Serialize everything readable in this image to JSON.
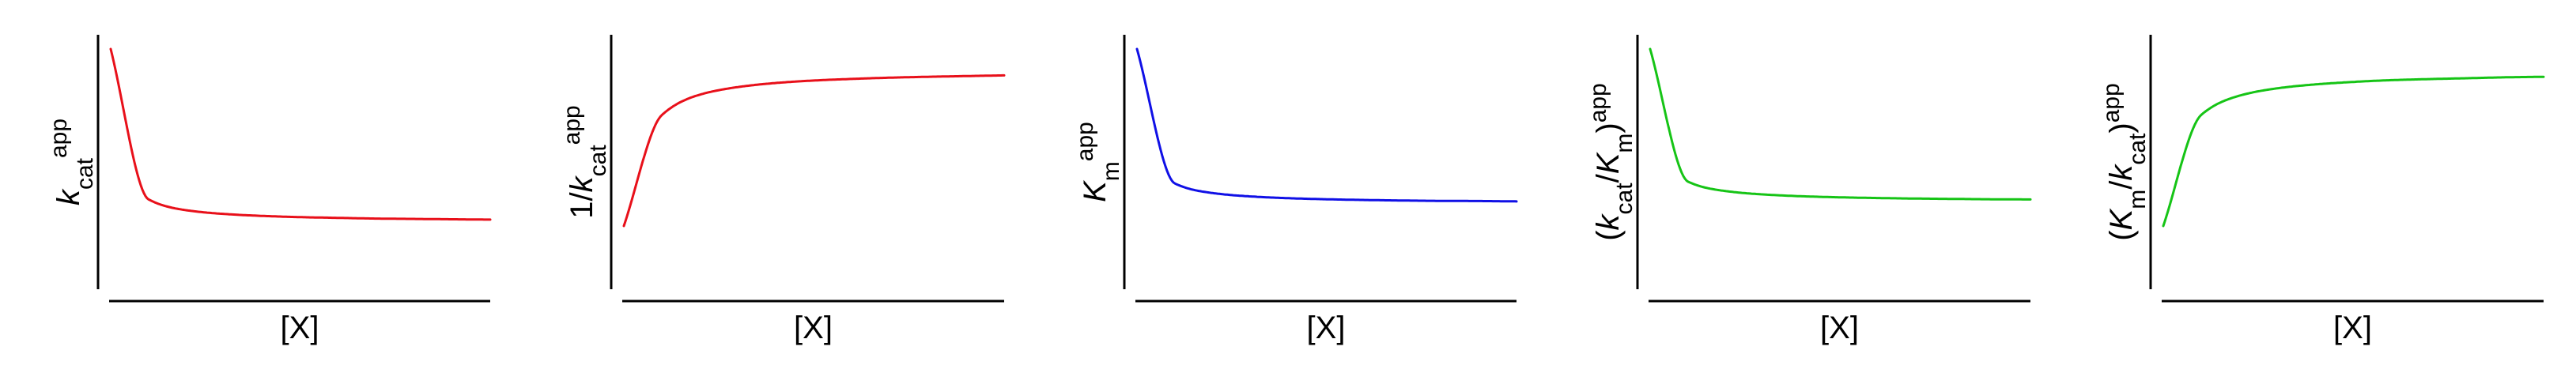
{
  "chart_data": [
    {
      "type": "line",
      "xlabel": "[X]",
      "ylabel": {
        "prefix": "",
        "base": "k",
        "base_sub": "cat",
        "suffix": "",
        "sup": "app"
      },
      "series": [
        {
          "color": "#e8101a",
          "x": [
            0.0,
            0.1,
            0.2,
            0.3,
            0.4,
            0.5,
            0.6,
            0.7,
            0.8,
            0.9,
            1.0
          ],
          "y": [
            1.0,
            0.15,
            0.089,
            0.068,
            0.057,
            0.05,
            0.046,
            0.042,
            0.04,
            0.038,
            0.036
          ]
        }
      ],
      "grid": false
    },
    {
      "type": "line",
      "xlabel": "[X]",
      "ylabel": {
        "prefix": "1/",
        "base": "k",
        "base_sub": "cat",
        "suffix": "",
        "sup": "app"
      },
      "series": [
        {
          "color": "#e8101a",
          "x": [
            0.0,
            0.1,
            0.2,
            0.3,
            0.4,
            0.5,
            0.6,
            0.7,
            0.8,
            0.9,
            1.0
          ],
          "y": [
            0.0,
            0.627,
            0.742,
            0.785,
            0.808,
            0.822,
            0.831,
            0.838,
            0.843,
            0.847,
            0.851
          ]
        }
      ],
      "grid": false
    },
    {
      "type": "line",
      "xlabel": "[X]",
      "ylabel": {
        "prefix": "",
        "base": "K",
        "base_sub": "m",
        "suffix": "",
        "sup": "app"
      },
      "series": [
        {
          "color": "#1010e6",
          "x": [
            0.0,
            0.1,
            0.2,
            0.3,
            0.4,
            0.5,
            0.6,
            0.7,
            0.8,
            0.9,
            1.0
          ],
          "y": [
            1.0,
            0.24,
            0.186,
            0.167,
            0.157,
            0.151,
            0.147,
            0.144,
            0.142,
            0.141,
            0.139
          ]
        }
      ],
      "grid": false
    },
    {
      "type": "line",
      "xlabel": "[X]",
      "ylabel": {
        "prefix": "(",
        "base": "k",
        "base_sub": "cat",
        "mid": "/",
        "base2": "K",
        "base2_sub": "m",
        "suffix": ")",
        "sup": "app"
      },
      "series": [
        {
          "color": "#16c416",
          "x": [
            0.0,
            0.1,
            0.2,
            0.3,
            0.4,
            0.5,
            0.6,
            0.7,
            0.8,
            0.9,
            1.0
          ],
          "y": [
            1.0,
            0.25,
            0.197,
            0.178,
            0.168,
            0.162,
            0.158,
            0.155,
            0.153,
            0.151,
            0.15
          ]
        }
      ],
      "grid": false
    },
    {
      "type": "line",
      "xlabel": "[X]",
      "ylabel": {
        "prefix": "(",
        "base": "K",
        "base_sub": "m",
        "mid": "/",
        "base2": "k",
        "base2_sub": "cat",
        "suffix": ")",
        "sup": "app"
      },
      "series": [
        {
          "color": "#16c416",
          "x": [
            0.0,
            0.1,
            0.2,
            0.3,
            0.4,
            0.5,
            0.6,
            0.7,
            0.8,
            0.9,
            1.0
          ],
          "y": [
            0.0,
            0.628,
            0.736,
            0.778,
            0.8,
            0.814,
            0.824,
            0.83,
            0.835,
            0.84,
            0.843
          ]
        }
      ],
      "grid": false
    }
  ]
}
